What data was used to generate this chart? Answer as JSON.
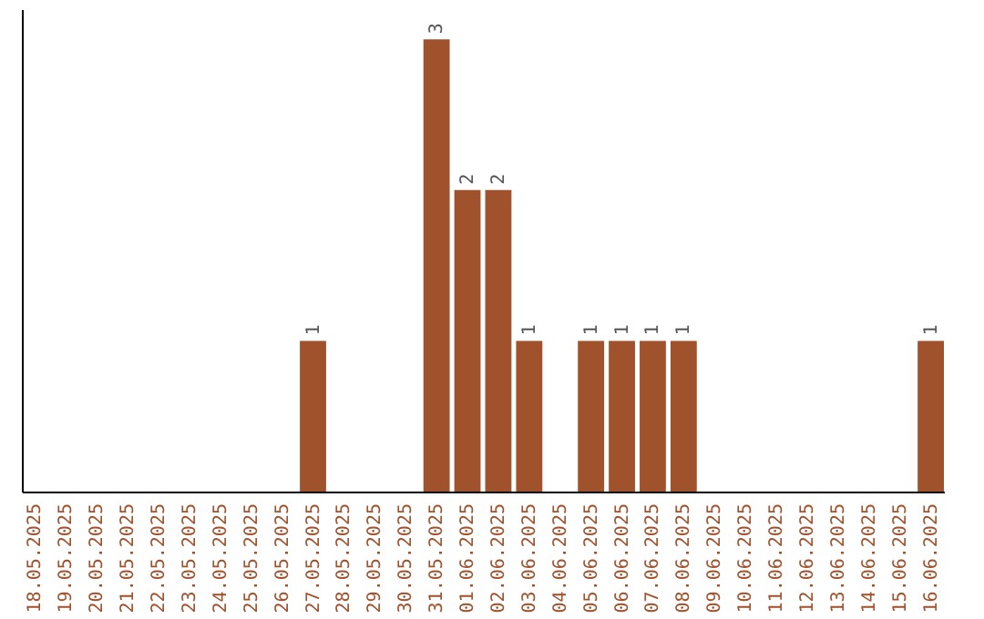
{
  "chart_data": {
    "type": "bar",
    "categories": [
      "18.05.2025",
      "19.05.2025",
      "20.05.2025",
      "21.05.2025",
      "22.05.2025",
      "23.05.2025",
      "24.05.2025",
      "25.05.2025",
      "26.05.2025",
      "27.05.2025",
      "28.05.2025",
      "29.05.2025",
      "30.05.2025",
      "31.05.2025",
      "01.06.2025",
      "02.06.2025",
      "03.06.2025",
      "04.06.2025",
      "05.06.2025",
      "06.06.2025",
      "07.06.2025",
      "08.06.2025",
      "09.06.2025",
      "10.06.2025",
      "11.06.2025",
      "12.06.2025",
      "13.06.2025",
      "14.06.2025",
      "15.06.2025",
      "16.06.2025"
    ],
    "values": [
      0,
      0,
      0,
      0,
      0,
      0,
      0,
      0,
      0,
      1,
      0,
      0,
      0,
      3,
      2,
      2,
      1,
      0,
      1,
      1,
      1,
      1,
      0,
      0,
      0,
      0,
      0,
      0,
      0,
      1
    ],
    "value_labels": [
      null,
      null,
      null,
      null,
      null,
      null,
      null,
      null,
      null,
      "1",
      null,
      null,
      null,
      "3",
      "2",
      "2",
      "1",
      null,
      "1",
      "1",
      "1",
      "1",
      null,
      null,
      null,
      null,
      null,
      null,
      null,
      "1"
    ],
    "color": "#a0522d",
    "ylim": [
      0,
      3.2
    ],
    "tick_labels": "x",
    "grid": false
  }
}
